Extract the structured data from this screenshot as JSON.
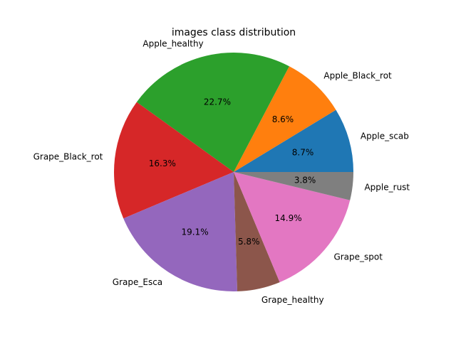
{
  "chart_data": {
    "type": "pie",
    "title": "images class distribution",
    "start_angle_deg": 0,
    "direction": "counterclockwise",
    "slices": [
      {
        "label": "Apple_scab",
        "value": 8.7,
        "pct_label": "8.7%",
        "color": "#1f77b4"
      },
      {
        "label": "Apple_Black_rot",
        "value": 8.6,
        "pct_label": "8.6%",
        "color": "#ff7f0e"
      },
      {
        "label": "Apple_healthy",
        "value": 22.7,
        "pct_label": "22.7%",
        "color": "#2ca02c"
      },
      {
        "label": "Grape_Black_rot",
        "value": 16.3,
        "pct_label": "16.3%",
        "color": "#d62728"
      },
      {
        "label": "Grape_Esca",
        "value": 19.1,
        "pct_label": "19.1%",
        "color": "#9467bd"
      },
      {
        "label": "Grape_healthy",
        "value": 5.8,
        "pct_label": "5.8%",
        "color": "#8c564b"
      },
      {
        "label": "Grape_spot",
        "value": 14.9,
        "pct_label": "14.9%",
        "color": "#e377c2"
      },
      {
        "label": "Apple_rust",
        "value": 3.8,
        "pct_label": "3.8%",
        "color": "#7f7f7f"
      }
    ]
  }
}
